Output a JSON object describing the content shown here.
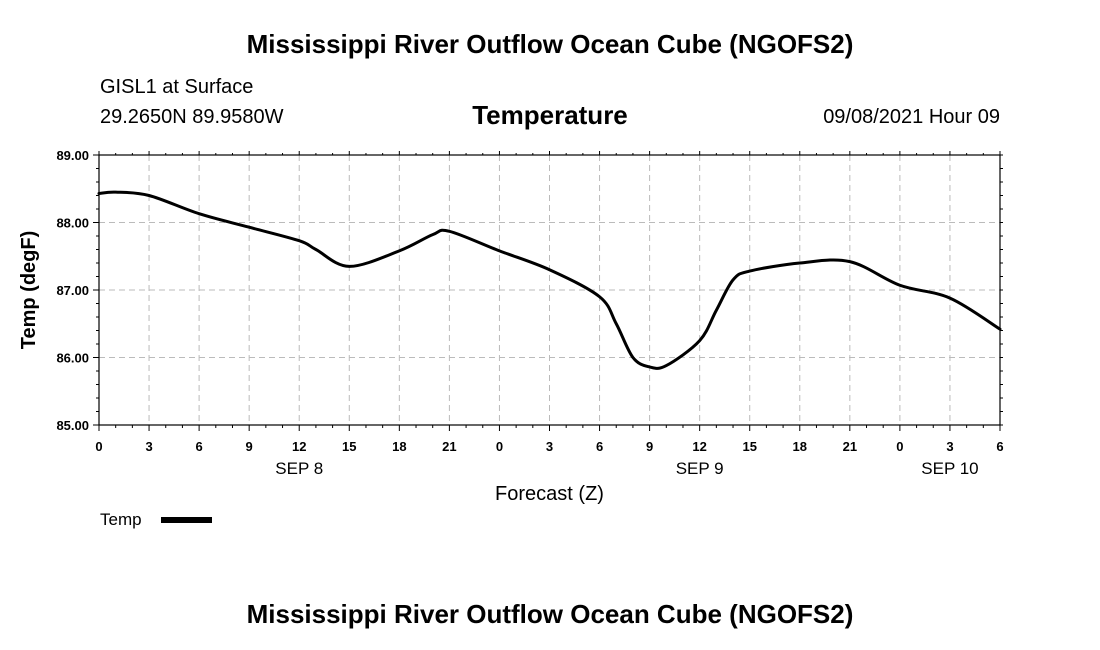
{
  "header": {
    "title": "Mississippi River Outflow Ocean Cube (NGOFS2)",
    "station": "GISL1 at Surface",
    "coords": "29.2650N  89.9580W",
    "variable": "Temperature",
    "datetime": "09/08/2021 Hour 09"
  },
  "footer": {
    "title": "Mississippi River Outflow Ocean Cube (NGOFS2)"
  },
  "colors": {
    "line": "#000000",
    "grid": "#bbbbbb"
  },
  "chart_data": {
    "type": "line",
    "title": "Temperature",
    "xlabel": "Forecast (Z)",
    "ylabel": "Temp (degF)",
    "ylim": [
      85.0,
      89.0
    ],
    "xlim": [
      0,
      54
    ],
    "grid": true,
    "legend": {
      "position": "bottom-left",
      "entries": [
        "Temp"
      ]
    },
    "yticks": [
      85.0,
      86.0,
      87.0,
      88.0,
      89.0
    ],
    "ytick_labels": [
      "85.00",
      "86.00",
      "87.00",
      "88.00",
      "89.00"
    ],
    "xticks": [
      0,
      3,
      6,
      9,
      12,
      15,
      18,
      21,
      24,
      27,
      30,
      33,
      36,
      39,
      42,
      45,
      48,
      51,
      54
    ],
    "xtick_labels": [
      "0",
      "3",
      "6",
      "9",
      "12",
      "15",
      "18",
      "21",
      "0",
      "3",
      "6",
      "9",
      "12",
      "15",
      "18",
      "21",
      "0",
      "3",
      "6"
    ],
    "date_labels": [
      {
        "x": 12,
        "label": "SEP 8"
      },
      {
        "x": 36,
        "label": "SEP 9"
      },
      {
        "x": 51,
        "label": "SEP 10"
      }
    ],
    "series": [
      {
        "name": "Temp",
        "x": [
          0,
          1,
          3,
          6,
          9,
          12,
          13,
          15,
          18,
          20,
          21,
          24,
          27,
          30,
          31,
          32,
          33,
          34,
          36,
          37,
          38,
          39,
          42,
          45,
          48,
          51,
          54
        ],
        "values": [
          88.43,
          88.45,
          88.4,
          88.13,
          87.93,
          87.73,
          87.6,
          87.35,
          87.58,
          87.82,
          87.87,
          87.58,
          87.3,
          86.9,
          86.5,
          86.0,
          85.86,
          85.88,
          86.25,
          86.7,
          87.15,
          87.28,
          87.4,
          87.42,
          87.07,
          86.88,
          86.42
        ]
      }
    ]
  }
}
